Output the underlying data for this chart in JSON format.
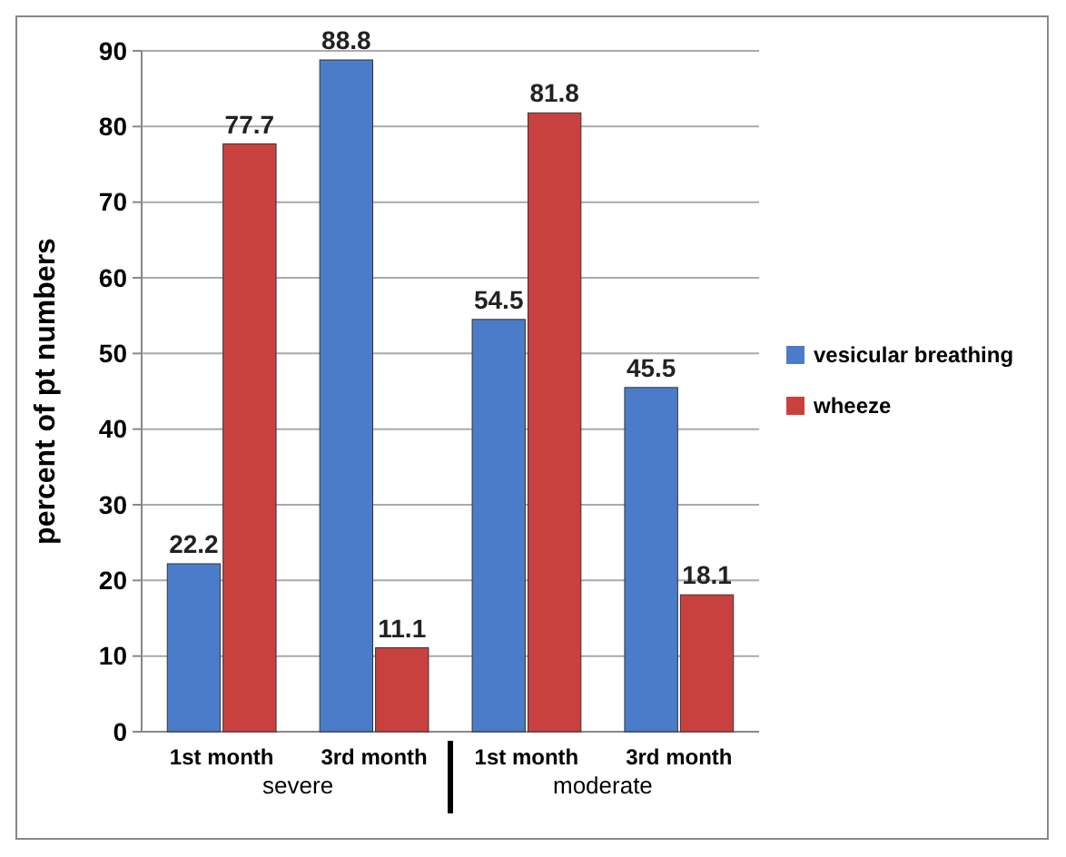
{
  "chart_data": {
    "type": "bar",
    "ylabel": "percent of pt numbers",
    "categories": [
      "1st month",
      "3rd month",
      "1st month",
      "3rd month"
    ],
    "series": [
      {
        "name": "vesicular breathing",
        "color": "#4a7cc9",
        "values": [
          22.2,
          88.8,
          54.5,
          45.5
        ]
      },
      {
        "name": "wheeze",
        "color": "#c9413f",
        "values": [
          77.7,
          11.1,
          81.8,
          18.1
        ]
      }
    ],
    "ylim": [
      0,
      90
    ],
    "yticks": [
      0,
      10,
      20,
      30,
      40,
      50,
      60,
      70,
      80,
      90
    ],
    "grid": "y",
    "legend": "right",
    "data_labels": true,
    "annotations": [
      "severe",
      "moderate"
    ]
  }
}
